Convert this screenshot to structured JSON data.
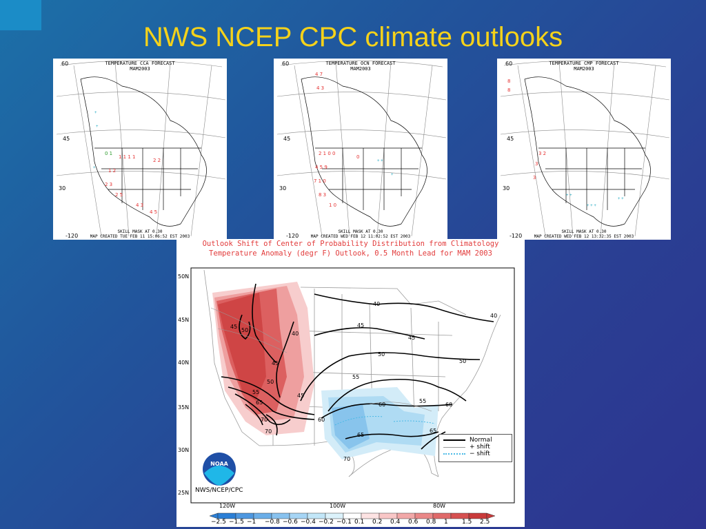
{
  "slide": {
    "title": "NWS NCEP CPC climate outlooks",
    "colors": {
      "title": "#f5d21a",
      "background_start": "#1c70a8",
      "background_end": "#2d3490"
    }
  },
  "small_maps": [
    {
      "title_line1": "TEMPERATURE CCA FORECAST",
      "title_line2": "MAM2003",
      "footer_line1": "SKILL MASK AT 0.30",
      "footer_line2": "MAP CREATED TUE FEB 11 15:06:52 EST 2003",
      "lat_labels": [
        "60",
        "45",
        "30",
        "-120"
      ]
    },
    {
      "title_line1": "TEMPERATURE OCN FORECAST",
      "title_line2": "MAM2003",
      "footer_line1": "SKILL MASK AT 0.30",
      "footer_line2": "MAP CREATED WED FEB 12 11:02:52 EST 2003",
      "lat_labels": [
        "60",
        "45",
        "30",
        "-120"
      ]
    },
    {
      "title_line1": "TEMPERATURE CMP FORECAST",
      "title_line2": "MAM2003",
      "footer_line1": "SKILL MASK AT 0.30",
      "footer_line2": "MAP CREATED WED FEB 12 13:32:35 EST 2003",
      "lat_labels": [
        "60",
        "45",
        "30",
        "-120"
      ]
    }
  ],
  "main_map": {
    "title_line1": "Outlook Shift of Center of Probability Distribution from Climatology",
    "title_line2": "Temperature Anomaly (degr F) Outlook, 0.5 Month Lead for MAM 2003",
    "lat_labels": [
      "50N",
      "45N",
      "40N",
      "35N",
      "30N",
      "25N"
    ],
    "lon_labels": [
      "120W",
      "100W",
      "80W"
    ],
    "contour_labels": [
      "40",
      "40",
      "40",
      "45",
      "45",
      "45",
      "45",
      "45",
      "50",
      "50",
      "50",
      "50",
      "55",
      "55",
      "55",
      "60",
      "60",
      "60",
      "65",
      "65",
      "65",
      "70",
      "70",
      "70"
    ],
    "legend": {
      "normal": "Normal",
      "plus": "+ shift",
      "minus": "− shift"
    },
    "agency": "NWS/NCEP/CPC",
    "logo_text": "NOAA",
    "colorbar": {
      "labels": [
        "−2.5",
        "−1.5",
        "−1",
        "−0.8",
        "−0.6",
        "−0.4",
        "−0.2",
        "−0.1",
        "0.1",
        "0.2",
        "0.4",
        "0.6",
        "0.8",
        "1",
        "1.5",
        "2.5"
      ],
      "colors": [
        "#2b7fd6",
        "#4d97e0",
        "#6aaee8",
        "#88c2ef",
        "#a6d5f5",
        "#c2e6f8",
        "#dcf2fb",
        "#ffffff",
        "#fde3e3",
        "#f9c7c7",
        "#f2a8a8",
        "#ea8888",
        "#e06a6a",
        "#d65050",
        "#c93a3a"
      ]
    }
  }
}
